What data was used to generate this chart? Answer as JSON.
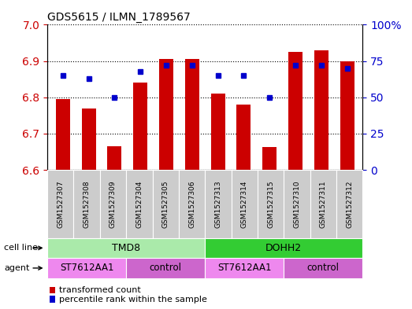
{
  "title": "GDS5615 / ILMN_1789567",
  "samples": [
    "GSM1527307",
    "GSM1527308",
    "GSM1527309",
    "GSM1527304",
    "GSM1527305",
    "GSM1527306",
    "GSM1527313",
    "GSM1527314",
    "GSM1527315",
    "GSM1527310",
    "GSM1527311",
    "GSM1527312"
  ],
  "transformed_count": [
    6.795,
    6.77,
    6.665,
    6.84,
    6.905,
    6.905,
    6.81,
    6.78,
    6.663,
    6.925,
    6.93,
    6.9
  ],
  "percentile_rank": [
    65,
    63,
    50,
    68,
    72,
    72,
    65,
    65,
    50,
    72,
    72,
    70
  ],
  "ylim_left": [
    6.6,
    7.0
  ],
  "ylim_right": [
    0,
    100
  ],
  "yticks_left": [
    6.6,
    6.7,
    6.8,
    6.9,
    7.0
  ],
  "yticks_right": [
    0,
    25,
    50,
    75,
    100
  ],
  "bar_color": "#cc0000",
  "dot_color": "#0000cc",
  "bar_bottom": 6.6,
  "cell_line_groups": [
    {
      "label": "TMD8",
      "start": 0,
      "end": 6,
      "color": "#aaeaaa"
    },
    {
      "label": "DOHH2",
      "start": 6,
      "end": 12,
      "color": "#33cc33"
    }
  ],
  "agent_groups": [
    {
      "label": "ST7612AA1",
      "start": 0,
      "end": 3,
      "color": "#ee88ee"
    },
    {
      "label": "control",
      "start": 3,
      "end": 6,
      "color": "#cc66cc"
    },
    {
      "label": "ST7612AA1",
      "start": 6,
      "end": 9,
      "color": "#ee88ee"
    },
    {
      "label": "control",
      "start": 9,
      "end": 12,
      "color": "#cc66cc"
    }
  ],
  "cell_line_label": "cell line",
  "agent_label": "agent",
  "legend_red": "transformed count",
  "legend_blue": "percentile rank within the sample",
  "grid_color": "black",
  "bg_color": "white",
  "tick_label_color_left": "#cc0000",
  "tick_label_color_right": "#0000cc",
  "sample_bg_color": "#cccccc",
  "sample_divider_color": "white"
}
